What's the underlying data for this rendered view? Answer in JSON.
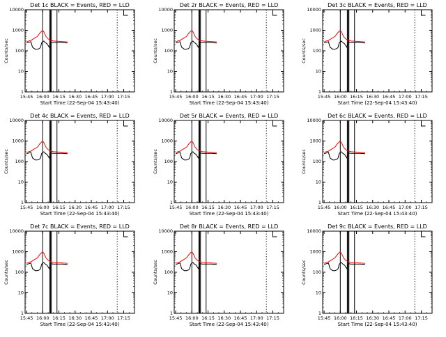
{
  "colors": {
    "events": "#000000",
    "lld": "#ff0000",
    "axis": "#000000",
    "background": "#ffffff"
  },
  "chart_data": [
    {
      "type": "line",
      "title": "Det 1c BLACK = Events, RED = LLD",
      "xlabel": "Start Time (22-Sep-04 15:43:40)",
      "ylabel": "Counts/sec",
      "yscale": "log",
      "ylim": [
        1,
        10000
      ],
      "ytick_labels": [
        "1",
        "10",
        "100",
        "1000",
        "10000"
      ],
      "x_tick_labels": [
        "15:45",
        "16:00",
        "16:15",
        "16:30",
        "16:45",
        "17:00",
        "17:15"
      ]
    },
    {
      "type": "line",
      "title": "Det 2r BLACK = Events, RED = LLD",
      "xlabel": "Start Time (22-Sep-04 15:43:40)",
      "ylabel": "Counts/sec",
      "yscale": "log",
      "ylim": [
        1,
        10000
      ],
      "ytick_labels": [
        "1",
        "10",
        "100",
        "1000",
        "10000"
      ],
      "x_tick_labels": [
        "15:45",
        "16:00",
        "16:15",
        "16:30",
        "16:45",
        "17:00",
        "17:15"
      ]
    },
    {
      "type": "line",
      "title": "Det 3c BLACK = Events, RED = LLD",
      "xlabel": "Start Time (22-Sep-04 15:43:40)",
      "ylabel": "Counts/sec",
      "yscale": "log",
      "ylim": [
        1,
        10000
      ],
      "ytick_labels": [
        "1",
        "10",
        "100",
        "1000",
        "10000"
      ],
      "x_tick_labels": [
        "15:45",
        "16:00",
        "16:15",
        "16:30",
        "16:45",
        "17:00",
        "17:15"
      ]
    },
    {
      "type": "line",
      "title": "Det 4c BLACK = Events, RED = LLD",
      "xlabel": "Start Time (22-Sep-04 15:43:40)",
      "ylabel": "Counts/sec",
      "yscale": "log",
      "ylim": [
        1,
        10000
      ],
      "ytick_labels": [
        "1",
        "10",
        "100",
        "1000",
        "10000"
      ],
      "x_tick_labels": [
        "15:45",
        "16:00",
        "16:15",
        "16:30",
        "16:45",
        "17:00",
        "17:15"
      ]
    },
    {
      "type": "line",
      "title": "Det 5r BLACK = Events, RED = LLD",
      "xlabel": "Start Time (22-Sep-04 15:43:40)",
      "ylabel": "Counts/sec",
      "yscale": "log",
      "ylim": [
        1,
        10000
      ],
      "ytick_labels": [
        "1",
        "10",
        "100",
        "1000",
        "10000"
      ],
      "x_tick_labels": [
        "15:45",
        "16:00",
        "16:15",
        "16:30",
        "16:45",
        "17:00",
        "17:15"
      ]
    },
    {
      "type": "line",
      "title": "Det 6c BLACK = Events, RED = LLD",
      "xlabel": "Start Time (22-Sep-04 15:43:40)",
      "ylabel": "Counts/sec",
      "yscale": "log",
      "ylim": [
        1,
        10000
      ],
      "ytick_labels": [
        "1",
        "10",
        "100",
        "1000",
        "10000"
      ],
      "x_tick_labels": [
        "15:45",
        "16:00",
        "16:15",
        "16:30",
        "16:45",
        "17:00",
        "17:15"
      ]
    },
    {
      "type": "line",
      "title": "Det 7c BLACK = Events, RED = LLD",
      "xlabel": "Start Time (22-Sep-04 15:43:40)",
      "ylabel": "Counts/sec",
      "yscale": "log",
      "ylim": [
        1,
        10000
      ],
      "ytick_labels": [
        "1",
        "10",
        "100",
        "1000",
        "10000"
      ],
      "x_tick_labels": [
        "15:45",
        "16:00",
        "16:15",
        "16:30",
        "16:45",
        "17:00",
        "17:15"
      ]
    },
    {
      "type": "line",
      "title": "Det 8r BLACK = Events, RED = LLD",
      "xlabel": "Start Time (22-Sep-04 15:43:40)",
      "ylabel": "Counts/sec",
      "yscale": "log",
      "ylim": [
        1,
        10000
      ],
      "ytick_labels": [
        "1",
        "10",
        "100",
        "1000",
        "10000"
      ],
      "x_tick_labels": [
        "15:45",
        "16:00",
        "16:15",
        "16:30",
        "16:45",
        "17:00",
        "17:15"
      ]
    },
    {
      "type": "line",
      "title": "Det 9c BLACK = Events, RED = LLD",
      "xlabel": "Start Time (22-Sep-04 15:43:40)",
      "ylabel": "Counts/sec",
      "yscale": "log",
      "ylim": [
        1,
        10000
      ],
      "ytick_labels": [
        "1",
        "10",
        "100",
        "1000",
        "10000"
      ],
      "x_tick_labels": [
        "15:45",
        "16:00",
        "16:15",
        "16:30",
        "16:45",
        "17:00",
        "17:15"
      ]
    }
  ]
}
